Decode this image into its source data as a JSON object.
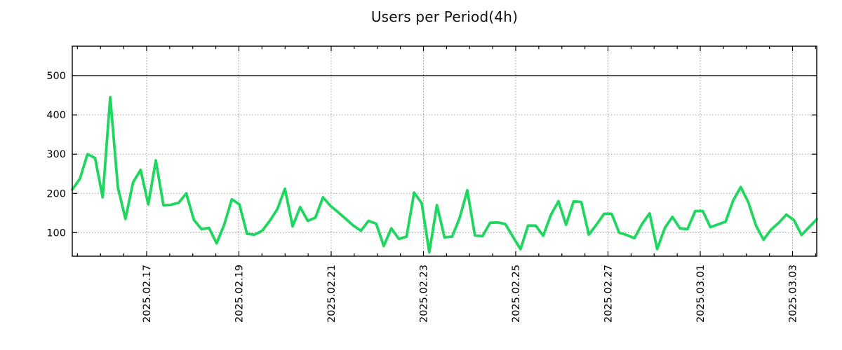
{
  "chart_data": {
    "type": "line",
    "title": "Users per Period(4h)",
    "xlabel": "",
    "ylabel": "",
    "grid": true,
    "legend": false,
    "ylim": [
      40,
      575
    ],
    "y_ticks": [
      100,
      200,
      300,
      400,
      500
    ],
    "threshold_line_y": 500,
    "x_tick_labels": [
      "2025.02.17",
      "2025.02.19",
      "2025.02.21",
      "2025.02.23",
      "2025.02.25",
      "2025.02.27",
      "2025.03.01",
      "2025.03.03"
    ],
    "x_minor_ticks_per_major": 4,
    "layout": {
      "x_first_tick_frac": 0.0999,
      "x_tick_spacing_frac": 0.12394,
      "legend_position": "none"
    },
    "colors": {
      "line": "#1fd65f",
      "grid": "#9a9a9a",
      "axis": "#000000",
      "threshold": "#000000",
      "background": "#ffffff"
    },
    "series": [
      {
        "name": "users",
        "period": "4h",
        "color": "#1fd65f",
        "values": [
          210,
          237,
          300,
          290,
          190,
          445,
          215,
          135,
          228,
          260,
          172,
          284,
          170,
          171,
          176,
          200,
          133,
          109,
          112,
          73,
          120,
          185,
          172,
          97,
          95,
          105,
          130,
          160,
          212,
          116,
          165,
          130,
          138,
          190,
          168,
          152,
          135,
          118,
          105,
          130,
          123,
          66,
          111,
          84,
          90,
          202,
          175,
          50,
          170,
          88,
          90,
          138,
          208,
          93,
          91,
          125,
          126,
          122,
          90,
          58,
          118,
          118,
          92,
          145,
          180,
          120,
          180,
          178,
          95,
          120,
          148,
          148,
          100,
          94,
          86,
          122,
          149,
          58,
          112,
          140,
          111,
          109,
          155,
          155,
          114,
          121,
          128,
          182,
          216,
          177,
          118,
          82,
          108,
          125,
          146,
          132,
          94,
          114,
          134
        ]
      }
    ]
  }
}
